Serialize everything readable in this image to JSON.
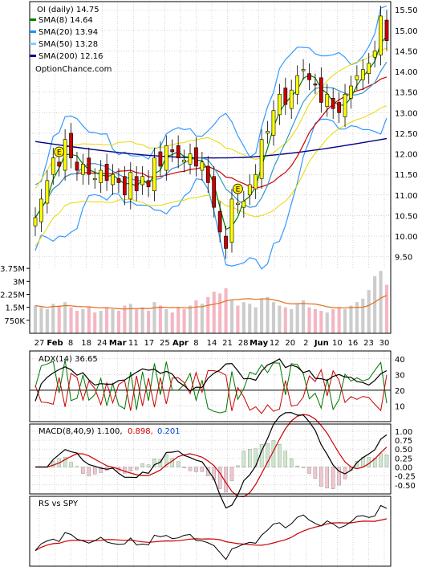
{
  "chart_data": {
    "type": "candlestick",
    "ticker_label": "OI (daily) 14.75",
    "source_label": "OptionChance.com",
    "price_axis": {
      "ylim": [
        9.2,
        15.7
      ],
      "ticks": [
        "9.50",
        "10.00",
        "10.50",
        "11.00",
        "11.50",
        "12.00",
        "12.50",
        "13.00",
        "13.50",
        "14.00",
        "14.50",
        "15.00",
        "15.50"
      ]
    },
    "legend": [
      {
        "label": "SMA(8) 14.64",
        "color": "#008000"
      },
      {
        "label": "SMA(20) 13.94",
        "color": "#1e90ff"
      },
      {
        "label": "SMA(50) 13.28",
        "color": "#87cefa"
      },
      {
        "label": "SMA(200) 12.16",
        "color": "#00008b"
      }
    ],
    "colors": {
      "up": "#ffff00",
      "down": "#cc0000",
      "sma8": "#008000",
      "sma20": "#3399cc",
      "sma50": "#87cefa",
      "sma200": "#00008b",
      "bb": "#3399ff",
      "env": "#e8d800",
      "vol_up": "#cccccc",
      "vol_down": "#f4b6c2",
      "vol_ma": "#e07020"
    },
    "earnings_markers": [
      {
        "x": "Feb 1",
        "label": "E"
      },
      {
        "x": "Apr 29",
        "label": "E"
      }
    ],
    "volume_axis": {
      "ylim": [
        0,
        4.5
      ],
      "ticks": [
        "3.75M",
        "3M",
        "2.25M",
        "1.5M",
        "750K"
      ]
    },
    "x_axis_labels": [
      "27",
      "Feb",
      "8",
      "18",
      "24",
      "Mar",
      "11",
      "17",
      "25",
      "Apr",
      "8",
      "14",
      "21",
      "28",
      "May",
      "12",
      "20",
      "2",
      "Jun",
      "10",
      "16",
      "23",
      "30"
    ],
    "closes": [
      10.45,
      10.9,
      11.35,
      11.9,
      11.7,
      12.35,
      11.9,
      11.6,
      11.75,
      11.5,
      11.4,
      11.6,
      11.35,
      11.5,
      11.3,
      11.0,
      11.55,
      11.1,
      11.45,
      11.2,
      11.9,
      11.7,
      12.2,
      12.05,
      11.9,
      11.85,
      12.0,
      11.7,
      11.8,
      11.3,
      10.7,
      10.1,
      9.7,
      10.9,
      10.8,
      10.85,
      11.25,
      11.5,
      12.35,
      12.55,
      13.05,
      13.45,
      13.2,
      13.55,
      13.9,
      14.05,
      13.8,
      13.7,
      13.25,
      13.45,
      13.1,
      13.0,
      13.45,
      13.65,
      13.9,
      14.05,
      14.2,
      14.5,
      15.35,
      14.75
    ],
    "volumes": [
      1.6,
      1.5,
      1.4,
      1.7,
      1.6,
      1.8,
      1.5,
      1.3,
      1.4,
      1.5,
      1.2,
      1.3,
      1.5,
      1.4,
      1.3,
      1.6,
      1.7,
      1.4,
      1.5,
      1.3,
      1.8,
      1.6,
      1.4,
      1.2,
      1.5,
      1.4,
      1.6,
      1.9,
      1.7,
      2.1,
      2.4,
      2.3,
      2.6,
      1.9,
      1.6,
      1.8,
      1.7,
      1.5,
      2.0,
      2.1,
      1.8,
      1.6,
      1.5,
      1.4,
      1.7,
      1.9,
      1.5,
      1.4,
      1.3,
      1.2,
      1.4,
      1.5,
      1.4,
      1.6,
      1.8,
      2.0,
      2.5,
      3.3,
      3.6,
      2.8
    ],
    "adx_panel": {
      "label": "ADX(14) 36.65",
      "ylim": [
        0,
        45
      ],
      "ticks": [
        "40",
        "30",
        "20",
        "10"
      ],
      "colors": {
        "adx": "#000000",
        "plus_di": "#007700",
        "minus_di": "#cc0000"
      },
      "ref_line": 20
    },
    "macd_panel": {
      "label": "MACD(8,40,9) 1.100,",
      "signal_label": "0.898,",
      "hist_label": "0.201",
      "ylim": [
        -0.75,
        1.2
      ],
      "ticks": [
        "1.00",
        "0.75",
        "0.50",
        "0.25",
        "0.00",
        "-0.25",
        "-0.50"
      ],
      "colors": {
        "macd": "#000000",
        "signal": "#cc0000",
        "hist_up": "#cde9cd",
        "hist_down": "#f2c6cf"
      }
    },
    "rs_panel": {
      "label": "RS vs SPY",
      "colors": {
        "rs": "#000000",
        "rs_ma": "#cc0000"
      }
    }
  }
}
